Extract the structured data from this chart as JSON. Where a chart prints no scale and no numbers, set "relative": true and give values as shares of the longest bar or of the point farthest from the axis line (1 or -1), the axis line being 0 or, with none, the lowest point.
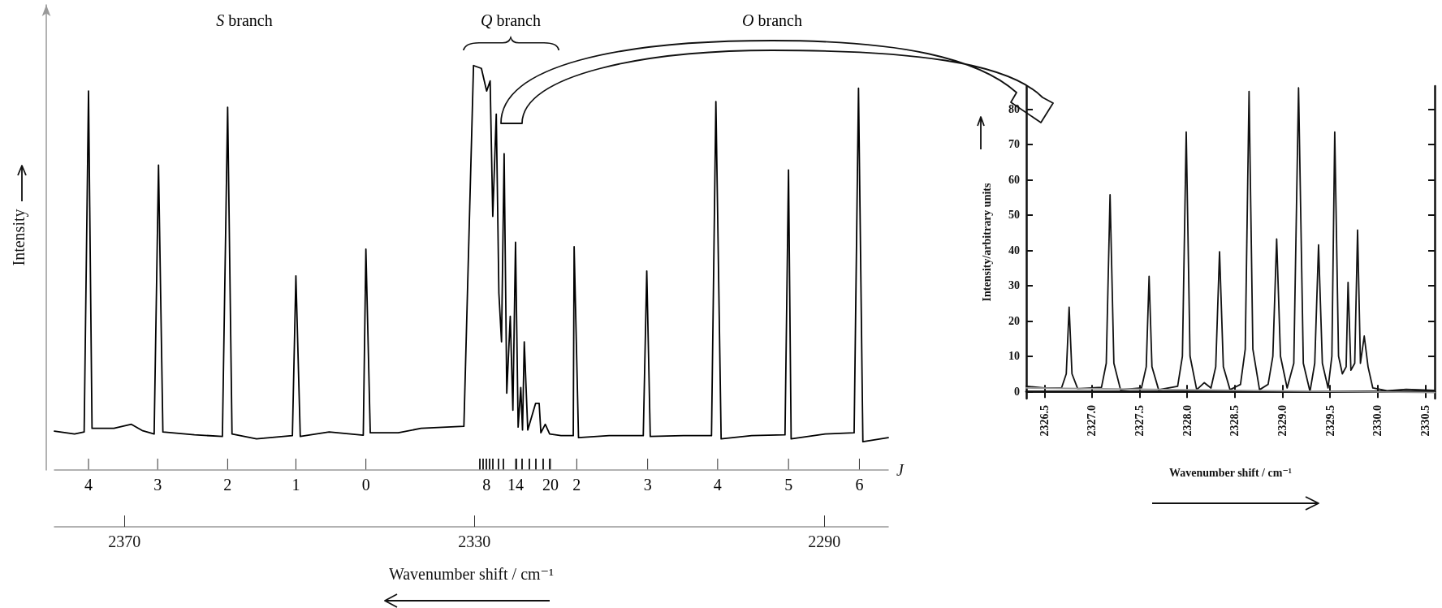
{
  "chart_data": [
    {
      "type": "line",
      "relative": true,
      "marker": "none",
      "xlabel": "Wavenumber shift / cm⁻¹",
      "ylabel": "Intensity",
      "x2label": "J",
      "xlim": [
        2378,
        2282.7
      ],
      "xticks": [
        2370,
        2330,
        2290
      ],
      "annotations": [
        "S branch",
        "Q branch",
        "O branch",
        {
          "text": "4",
          "x": 2374.1
        },
        {
          "text": "3",
          "x": 2366.2
        },
        {
          "text": "2",
          "x": 2358.2
        },
        {
          "text": "1",
          "x": 2350.4
        },
        {
          "text": "0",
          "x": 2342.4
        },
        {
          "text": "8",
          "x": 2328.6
        },
        {
          "text": "14",
          "x": 2325.3
        },
        {
          "text": "20",
          "x": 2321.3
        },
        {
          "text": "2",
          "x": 2318.3
        },
        {
          "text": "3",
          "x": 2310.2
        },
        {
          "text": "4",
          "x": 2302.2
        },
        {
          "text": "5",
          "x": 2294.1
        },
        {
          "text": "6",
          "x": 2286.0
        }
      ],
      "series": [
        {
          "color": "#000000",
          "x": [
            2378.0,
            2375.7,
            2374.6,
            2374.1,
            2373.7,
            2371.2,
            2369.2,
            2367.9,
            2366.6,
            2366.1,
            2365.6,
            2362.0,
            2358.8,
            2358.2,
            2357.7,
            2354.9,
            2350.8,
            2350.4,
            2349.9,
            2346.6,
            2342.7,
            2342.4,
            2341.9,
            2338.7,
            2336.1,
            2331.2,
            2330.1,
            2329.2,
            2328.6,
            2328.2,
            2327.9,
            2327.5,
            2327.2,
            2326.9,
            2326.6,
            2326.3,
            2325.9,
            2325.6,
            2325.3,
            2325.0,
            2324.7,
            2324.5,
            2324.3,
            2323.9,
            2323.0,
            2322.6,
            2322.4,
            2321.9,
            2321.4,
            2320.1,
            2318.7,
            2318.6,
            2318.1,
            2314.6,
            2310.7,
            2310.3,
            2309.9,
            2306.1,
            2302.9,
            2302.4,
            2301.8,
            2298.3,
            2294.5,
            2294.1,
            2293.8,
            2289.9,
            2286.6,
            2286.1,
            2285.6,
            2282.7
          ],
          "values": [
            0.096,
            0.089,
            0.094,
            0.937,
            0.103,
            0.103,
            0.113,
            0.097,
            0.089,
            0.754,
            0.094,
            0.087,
            0.083,
            0.897,
            0.089,
            0.077,
            0.085,
            0.48,
            0.083,
            0.094,
            0.086,
            0.546,
            0.092,
            0.092,
            0.103,
            0.108,
            1.0,
            0.993,
            0.937,
            0.962,
            0.627,
            0.88,
            0.437,
            0.317,
            0.782,
            0.19,
            0.38,
            0.148,
            0.563,
            0.106,
            0.204,
            0.099,
            0.317,
            0.099,
            0.165,
            0.165,
            0.092,
            0.113,
            0.089,
            0.085,
            0.085,
            0.552,
            0.08,
            0.085,
            0.085,
            0.492,
            0.083,
            0.085,
            0.085,
            0.911,
            0.077,
            0.085,
            0.087,
            0.742,
            0.077,
            0.089,
            0.092,
            0.944,
            0.07,
            0.08
          ]
        }
      ]
    },
    {
      "type": "line",
      "marker": "none",
      "xlabel": "Wavenumber shift / cm⁻¹",
      "ylabel": "Intensity/arbitrary units",
      "xlim": [
        2326.31,
        2330.6
      ],
      "ylim": [
        -2,
        86.5
      ],
      "xticks": [
        {
          "value": 2326.5,
          "label": "2326.5"
        },
        {
          "value": 2327,
          "label": "2327.0"
        },
        {
          "value": 2327.5,
          "label": "2327.5"
        },
        {
          "value": 2328,
          "label": "2328.0"
        },
        {
          "value": 2328.5,
          "label": "2328.5"
        },
        {
          "value": 2329,
          "label": "2329.0"
        },
        {
          "value": 2329.5,
          "label": "2329.5"
        },
        {
          "value": 2330,
          "label": "2330.0"
        },
        {
          "value": 2330.5,
          "label": "2330.5"
        }
      ],
      "yticks": [
        0,
        10,
        20,
        30,
        40,
        50,
        60,
        70,
        80
      ],
      "series": [
        {
          "color": "#111111",
          "x": [
            2326.31,
            2326.5,
            2326.68,
            2326.73,
            2326.76,
            2326.79,
            2326.85,
            2327.1,
            2327.15,
            2327.19,
            2327.23,
            2327.3,
            2327.52,
            2327.57,
            2327.6,
            2327.63,
            2327.7,
            2327.9,
            2327.95,
            2327.99,
            2328.03,
            2328.1,
            2328.18,
            2328.25,
            2328.3,
            2328.34,
            2328.38,
            2328.45,
            2328.56,
            2328.61,
            2328.65,
            2328.69,
            2328.76,
            2328.85,
            2328.9,
            2328.94,
            2328.98,
            2329.05,
            2329.12,
            2329.17,
            2329.22,
            2329.29,
            2329.34,
            2329.38,
            2329.42,
            2329.48,
            2329.52,
            2329.55,
            2329.59,
            2329.63,
            2329.67,
            2329.69,
            2329.72,
            2329.76,
            2329.79,
            2329.82,
            2329.86,
            2329.9,
            2329.95,
            2330.1,
            2330.3,
            2330.6
          ],
          "values": [
            1.5,
            1.0,
            1.0,
            5,
            23.9,
            5,
            0.8,
            1.2,
            8,
            55.7,
            8,
            0.5,
            1.0,
            7,
            32.6,
            7,
            0.5,
            1.5,
            10,
            73.5,
            10,
            0.5,
            2.5,
            1.0,
            7,
            39.6,
            7,
            0.5,
            2,
            12,
            85.0,
            12,
            0.5,
            2,
            10,
            43.2,
            10,
            1,
            8,
            86,
            8,
            0,
            8,
            41.5,
            8,
            1,
            10,
            73.5,
            10,
            5,
            7,
            30.9,
            6,
            8,
            45.7,
            8,
            15.7,
            7,
            1,
            0.2,
            0.6,
            0.3
          ]
        },
        {
          "color": "#999999",
          "x": [
            2326.31,
            2330.6
          ],
          "values": [
            1.0,
            -0.3
          ]
        }
      ]
    }
  ]
}
